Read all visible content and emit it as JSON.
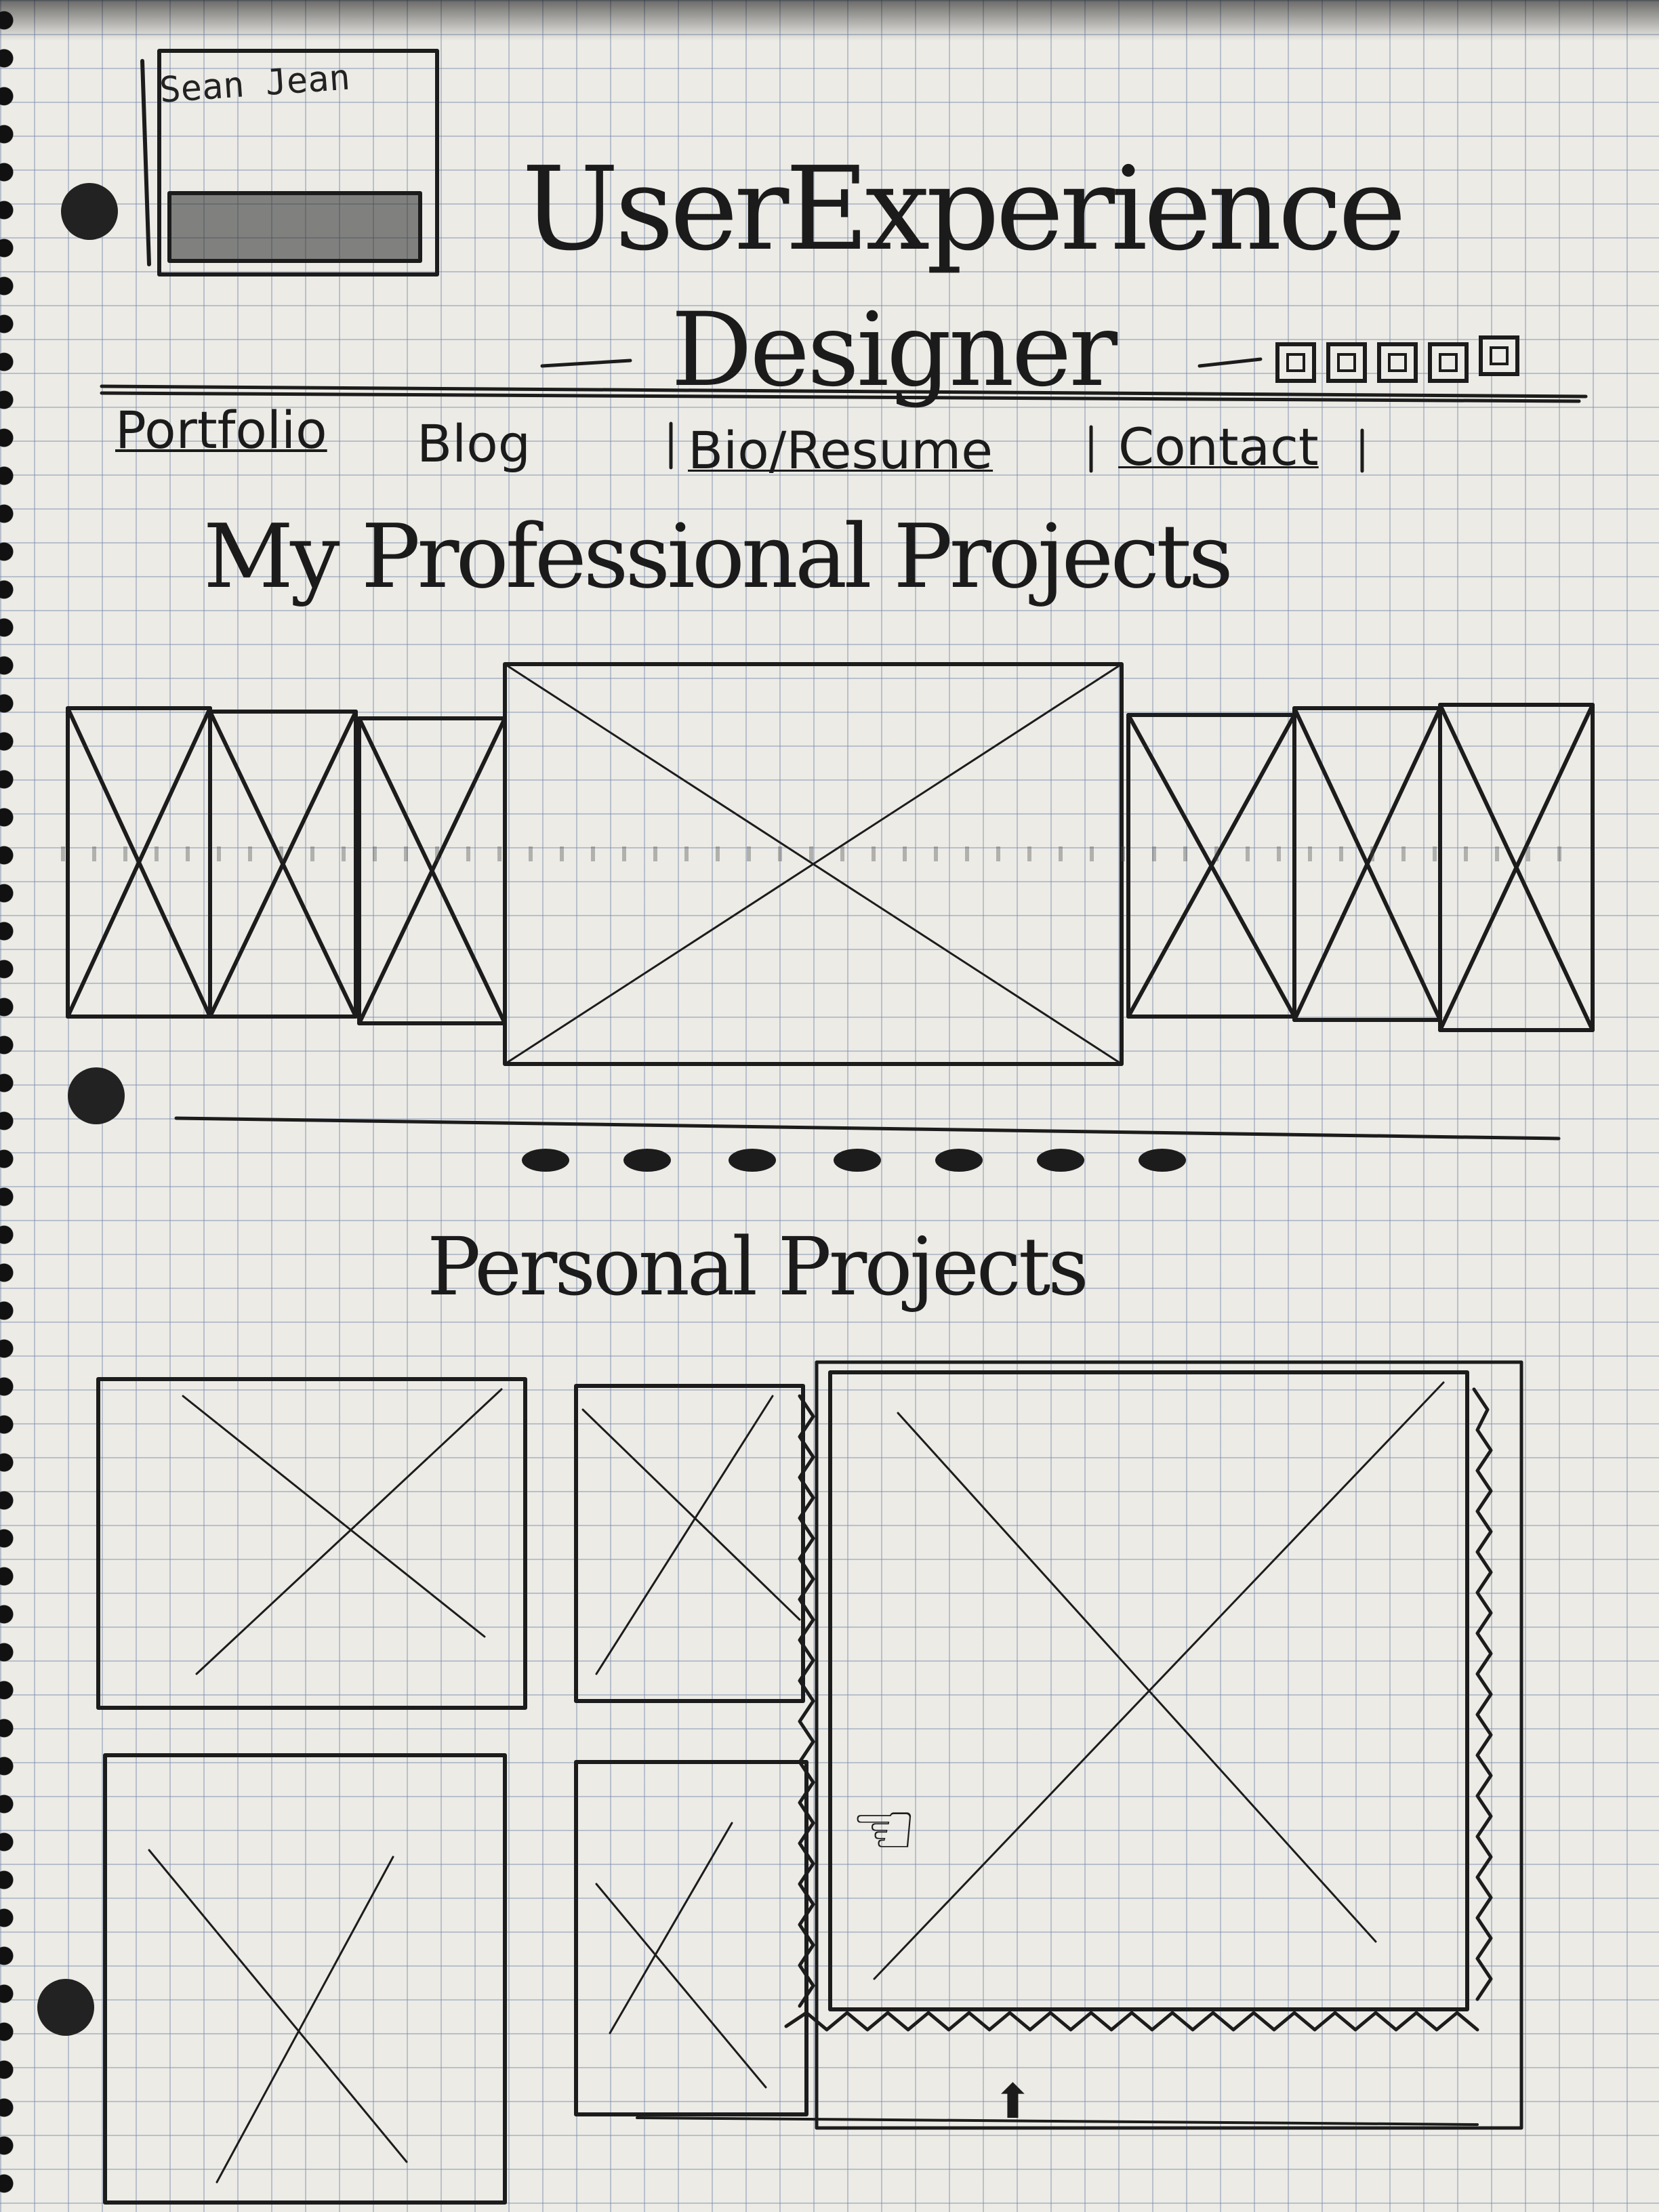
{
  "logo": {
    "label": "Sean Jean"
  },
  "header": {
    "title_line1": "UserExperience",
    "title_line2": "Designer",
    "social_icons": [
      "social-icon-1",
      "social-icon-2",
      "social-icon-3",
      "social-icon-4",
      "social-icon-5"
    ]
  },
  "nav": {
    "items": [
      {
        "label": "Portfolio",
        "active": true
      },
      {
        "label": "Blog",
        "active": false
      },
      {
        "label": "Bio/Resume",
        "active": false
      },
      {
        "label": "Contact",
        "active": false
      }
    ]
  },
  "professional": {
    "heading": "My Professional Projects",
    "carousel_images": 7,
    "active_index": 3,
    "pagination_dots": 7
  },
  "personal": {
    "heading": "Personal Projects",
    "tiles": 5
  }
}
